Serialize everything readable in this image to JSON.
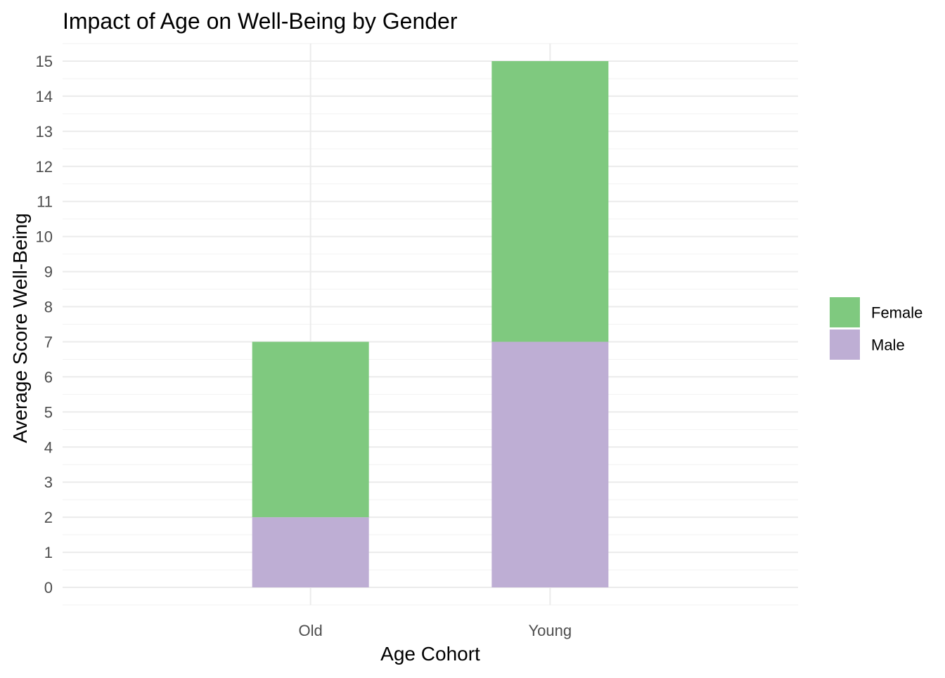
{
  "chart_data": {
    "type": "bar",
    "stacked": true,
    "title": "Impact of Age on Well-Being by Gender",
    "xlabel": "Age Cohort",
    "ylabel": "Average Score Well-Being",
    "categories": [
      "Old",
      "Young"
    ],
    "series": [
      {
        "name": "Male",
        "values": [
          2,
          7
        ],
        "color": "#beaed4"
      },
      {
        "name": "Female",
        "values": [
          5,
          8
        ],
        "color": "#7fc97f"
      }
    ],
    "stack_totals": [
      7,
      15
    ],
    "yticks": [
      0,
      1,
      2,
      3,
      4,
      5,
      6,
      7,
      8,
      9,
      10,
      11,
      12,
      13,
      14,
      15
    ],
    "ylim": [
      -0.5,
      15.5
    ],
    "grid": true,
    "legend": {
      "position": "right",
      "entries": [
        {
          "label": "Female",
          "color": "#7fc97f"
        },
        {
          "label": "Male",
          "color": "#beaed4"
        }
      ]
    }
  }
}
